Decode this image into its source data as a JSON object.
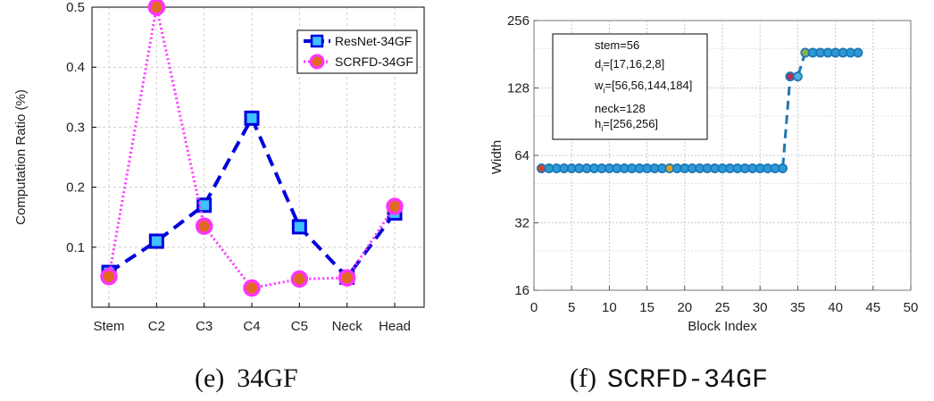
{
  "chart_data": [
    {
      "type": "line",
      "title": "",
      "caption_label": "(e)",
      "caption_text": "34GF",
      "xlabel": "",
      "ylabel": "Computation Ratio (%)",
      "categories": [
        "Stem",
        "C2",
        "C3",
        "C4",
        "C5",
        "Neck",
        "Head"
      ],
      "ylim": [
        0.0,
        0.5
      ],
      "yticks": [
        "0.1",
        "0.2",
        "0.3",
        "0.4",
        "0.5"
      ],
      "ytick_values": [
        0.1,
        0.2,
        0.3,
        0.4,
        0.5
      ],
      "grid": true,
      "legend_position": "top-right",
      "series": [
        {
          "name": "ResNet-34GF",
          "color": "#0000dd",
          "marker": "square",
          "style": "dashed",
          "values": [
            0.058,
            0.11,
            0.17,
            0.315,
            0.134,
            0.05,
            0.157
          ]
        },
        {
          "name": "SCRFD-34GF",
          "color": "#ff33ff",
          "marker": "circle",
          "style": "dotted",
          "values": [
            0.051,
            0.5,
            0.135,
            0.032,
            0.047,
            0.049,
            0.168
          ]
        }
      ]
    },
    {
      "type": "line",
      "title": "",
      "caption_label": "(f)",
      "caption_text": "SCRFD-34GF",
      "xlabel": "Block Index",
      "ylabel": "Width",
      "xlim": [
        0,
        50
      ],
      "xticks": [
        "0",
        "5",
        "10",
        "15",
        "20",
        "25",
        "30",
        "35",
        "40",
        "45",
        "50"
      ],
      "xtick_values": [
        0,
        5,
        10,
        15,
        20,
        25,
        30,
        35,
        40,
        45,
        50
      ],
      "ylim": [
        16,
        256
      ],
      "yscale": "log2",
      "yticks": [
        "16",
        "32",
        "64",
        "128",
        "256"
      ],
      "ytick_values": [
        16,
        32,
        64,
        128,
        256
      ],
      "grid": true,
      "series": [
        {
          "name": "width",
          "color": "#1f78b4",
          "style": "dashed",
          "x": [
            1,
            2,
            3,
            4,
            5,
            6,
            7,
            8,
            9,
            10,
            11,
            12,
            13,
            14,
            15,
            16,
            17,
            18,
            19,
            20,
            21,
            22,
            23,
            24,
            25,
            26,
            27,
            28,
            29,
            30,
            31,
            32,
            33,
            34,
            35,
            36,
            37,
            38,
            39,
            40,
            41,
            42,
            43
          ],
          "y": [
            56,
            56,
            56,
            56,
            56,
            56,
            56,
            56,
            56,
            56,
            56,
            56,
            56,
            56,
            56,
            56,
            56,
            56,
            56,
            56,
            56,
            56,
            56,
            56,
            56,
            56,
            56,
            56,
            56,
            56,
            56,
            56,
            56,
            144,
            144,
            184,
            184,
            184,
            184,
            184,
            184,
            184,
            184
          ],
          "highlight": [
            {
              "x": 1,
              "color": "#d9412b"
            },
            {
              "x": 18,
              "color": "#e0a020"
            },
            {
              "x": 34,
              "color": "#b03060"
            },
            {
              "x": 35,
              "color": "#4fb0e0"
            },
            {
              "x": 36,
              "color": "#8ab04a"
            }
          ]
        }
      ],
      "annotation": {
        "stem": "stem=56",
        "depth_main": "d",
        "depth_sub": "i",
        "depth_value": "=[17,16,2,8]",
        "width_main": "w",
        "width_sub": "i",
        "width_value": "=[56,56,144,184]",
        "neck": "neck=128",
        "head_main": "h",
        "head_sub": "i",
        "head_value": "=[256,256]"
      }
    }
  ]
}
